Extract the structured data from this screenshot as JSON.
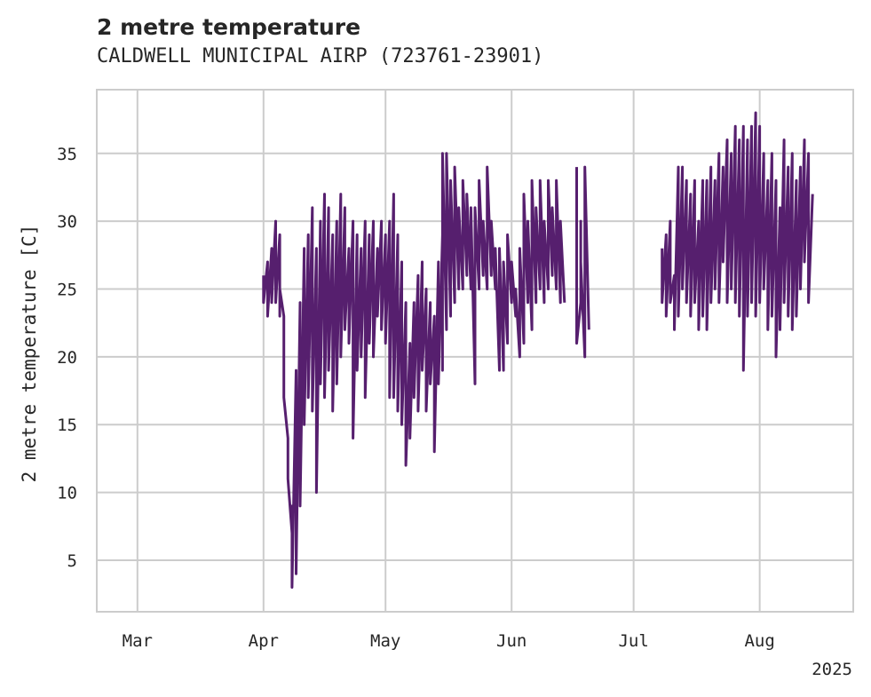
{
  "title": "2 metre temperature",
  "subtitle": "CALDWELL MUNICIPAL AIRP (723761-23901)",
  "colors": {
    "series": "#561f6e",
    "grid": "#cccccc",
    "frame": "#cccccc",
    "text": "#262626"
  },
  "chart_data": {
    "type": "line",
    "title": "2 metre temperature",
    "subtitle": "CALDWELL MUNICIPAL AIRP (723761-23901)",
    "xlabel": "",
    "ylabel": "2 metre temperature [C]",
    "year_label": "2025",
    "xlim": [
      "2025-02-19",
      "2025-08-24"
    ],
    "ylim": [
      1.2,
      39.7
    ],
    "grid": true,
    "x_ticks": [
      {
        "date": "2025-03-01",
        "label": "Mar"
      },
      {
        "date": "2025-04-01",
        "label": "Apr"
      },
      {
        "date": "2025-05-01",
        "label": "May"
      },
      {
        "date": "2025-06-01",
        "label": "Jun"
      },
      {
        "date": "2025-07-01",
        "label": "Jul"
      },
      {
        "date": "2025-08-01",
        "label": "Aug"
      }
    ],
    "y_ticks": [
      5,
      10,
      15,
      20,
      25,
      30,
      35
    ],
    "series": [
      {
        "color": "#561f6e",
        "segments": [
          [
            [
              "2025-04-01",
              26
            ],
            [
              "2025-04-01",
              24
            ],
            [
              "2025-04-02",
              27
            ],
            [
              "2025-04-02",
              23
            ],
            [
              "2025-04-03",
              28
            ],
            [
              "2025-04-03",
              24
            ],
            [
              "2025-04-04",
              30
            ],
            [
              "2025-04-04",
              24
            ],
            [
              "2025-04-05",
              29
            ],
            [
              "2025-04-05",
              23
            ],
            [
              "2025-04-05",
              25
            ],
            [
              "2025-04-06",
              23
            ],
            [
              "2025-04-06",
              17
            ],
            [
              "2025-04-07",
              14
            ],
            [
              "2025-04-07",
              11
            ],
            [
              "2025-04-08",
              7
            ],
            [
              "2025-04-08",
              9
            ],
            [
              "2025-04-08",
              3
            ],
            [
              "2025-04-09",
              19
            ],
            [
              "2025-04-09",
              4
            ],
            [
              "2025-04-10",
              24
            ],
            [
              "2025-04-10",
              9
            ],
            [
              "2025-04-11",
              28
            ],
            [
              "2025-04-11",
              15
            ],
            [
              "2025-04-12",
              29
            ],
            [
              "2025-04-12",
              17
            ],
            [
              "2025-04-13",
              31
            ],
            [
              "2025-04-13",
              16
            ],
            [
              "2025-04-14",
              28
            ],
            [
              "2025-04-14",
              10
            ],
            [
              "2025-04-15",
              30
            ],
            [
              "2025-04-15",
              18
            ],
            [
              "2025-04-16",
              32
            ],
            [
              "2025-04-16",
              17
            ],
            [
              "2025-04-17",
              31
            ],
            [
              "2025-04-17",
              19
            ],
            [
              "2025-04-18",
              29
            ],
            [
              "2025-04-18",
              16
            ],
            [
              "2025-04-19",
              30
            ],
            [
              "2025-04-19",
              18
            ],
            [
              "2025-04-20",
              32
            ],
            [
              "2025-04-20",
              20
            ],
            [
              "2025-04-21",
              31
            ],
            [
              "2025-04-21",
              22
            ],
            [
              "2025-04-22",
              28
            ],
            [
              "2025-04-22",
              21
            ],
            [
              "2025-04-23",
              30
            ],
            [
              "2025-04-23",
              14
            ],
            [
              "2025-04-24",
              29
            ],
            [
              "2025-04-24",
              19
            ],
            [
              "2025-04-25",
              28
            ],
            [
              "2025-04-25",
              20
            ],
            [
              "2025-04-26",
              30
            ],
            [
              "2025-04-26",
              17
            ],
            [
              "2025-04-27",
              29
            ],
            [
              "2025-04-27",
              21
            ],
            [
              "2025-04-28",
              30
            ],
            [
              "2025-04-28",
              20
            ],
            [
              "2025-04-29",
              28
            ],
            [
              "2025-04-29",
              23
            ],
            [
              "2025-04-30",
              30
            ],
            [
              "2025-04-30",
              22
            ],
            [
              "2025-05-01",
              29
            ],
            [
              "2025-05-01",
              21
            ],
            [
              "2025-05-02",
              30
            ],
            [
              "2025-05-02",
              17
            ],
            [
              "2025-05-03",
              32
            ],
            [
              "2025-05-03",
              17
            ],
            [
              "2025-05-04",
              29
            ],
            [
              "2025-05-04",
              16
            ],
            [
              "2025-05-05",
              27
            ],
            [
              "2025-05-05",
              15
            ],
            [
              "2025-05-06",
              24
            ],
            [
              "2025-05-06",
              12
            ],
            [
              "2025-05-07",
              21
            ],
            [
              "2025-05-07",
              14
            ],
            [
              "2025-05-08",
              24
            ],
            [
              "2025-05-08",
              17
            ],
            [
              "2025-05-09",
              26
            ],
            [
              "2025-05-09",
              16
            ],
            [
              "2025-05-10",
              27
            ],
            [
              "2025-05-10",
              19
            ],
            [
              "2025-05-11",
              25
            ],
            [
              "2025-05-11",
              16
            ],
            [
              "2025-05-12",
              24
            ],
            [
              "2025-05-12",
              18
            ],
            [
              "2025-05-13",
              23
            ],
            [
              "2025-05-13",
              13
            ],
            [
              "2025-05-14",
              27
            ],
            [
              "2025-05-14",
              18
            ],
            [
              "2025-05-15",
              29
            ],
            [
              "2025-05-15",
              19
            ],
            [
              "2025-05-15",
              35
            ],
            [
              "2025-05-16",
              22
            ],
            [
              "2025-05-16",
              35
            ],
            [
              "2025-05-17",
              23
            ],
            [
              "2025-05-17",
              33
            ],
            [
              "2025-05-18",
              24
            ],
            [
              "2025-05-18",
              34
            ],
            [
              "2025-05-19",
              25
            ],
            [
              "2025-05-19",
              31
            ],
            [
              "2025-05-20",
              25
            ],
            [
              "2025-05-20",
              33
            ],
            [
              "2025-05-21",
              26
            ],
            [
              "2025-05-21",
              32
            ],
            [
              "2025-05-22",
              25
            ],
            [
              "2025-05-22",
              31
            ],
            [
              "2025-05-23",
              18
            ],
            [
              "2025-05-23",
              31
            ],
            [
              "2025-05-24",
              25
            ],
            [
              "2025-05-24",
              33
            ],
            [
              "2025-05-25",
              26
            ],
            [
              "2025-05-25",
              30
            ],
            [
              "2025-05-26",
              25
            ],
            [
              "2025-05-26",
              34
            ],
            [
              "2025-05-27",
              26
            ],
            [
              "2025-05-27",
              30
            ],
            [
              "2025-05-28",
              25
            ],
            [
              "2025-05-28",
              28
            ],
            [
              "2025-05-29",
              19
            ],
            [
              "2025-05-29",
              28
            ],
            [
              "2025-05-30",
              19
            ],
            [
              "2025-05-30",
              27
            ],
            [
              "2025-05-31",
              21
            ],
            [
              "2025-05-31",
              29
            ],
            [
              "2025-06-01",
              24
            ],
            [
              "2025-06-01",
              27
            ],
            [
              "2025-06-02",
              23
            ],
            [
              "2025-06-02",
              25
            ],
            [
              "2025-06-03",
              20
            ],
            [
              "2025-06-03",
              28
            ],
            [
              "2025-06-04",
              21
            ],
            [
              "2025-06-04",
              32
            ],
            [
              "2025-06-05",
              24
            ],
            [
              "2025-06-05",
              30
            ],
            [
              "2025-06-06",
              22
            ],
            [
              "2025-06-06",
              33
            ],
            [
              "2025-06-07",
              24
            ],
            [
              "2025-06-07",
              31
            ],
            [
              "2025-06-08",
              25
            ],
            [
              "2025-06-08",
              33
            ],
            [
              "2025-06-09",
              24
            ],
            [
              "2025-06-09",
              30
            ],
            [
              "2025-06-10",
              25
            ],
            [
              "2025-06-10",
              33
            ],
            [
              "2025-06-11",
              26
            ],
            [
              "2025-06-11",
              31
            ],
            [
              "2025-06-12",
              25
            ],
            [
              "2025-06-12",
              33
            ],
            [
              "2025-06-13",
              24
            ],
            [
              "2025-06-13",
              30
            ],
            [
              "2025-06-14",
              24
            ]
          ],
          [
            [
              "2025-06-17",
              34
            ],
            [
              "2025-06-17",
              30
            ],
            [
              "2025-06-17",
              21
            ],
            [
              "2025-06-18",
              24
            ],
            [
              "2025-06-18",
              30
            ],
            [
              "2025-06-18",
              27
            ],
            [
              "2025-06-19",
              20
            ],
            [
              "2025-06-19",
              34
            ],
            [
              "2025-06-20",
              22
            ]
          ],
          [
            [
              "2025-07-08",
              28
            ],
            [
              "2025-07-08",
              24
            ],
            [
              "2025-07-09",
              29
            ],
            [
              "2025-07-09",
              23
            ],
            [
              "2025-07-10",
              30
            ],
            [
              "2025-07-10",
              24
            ],
            [
              "2025-07-11",
              26
            ],
            [
              "2025-07-11",
              22
            ],
            [
              "2025-07-12",
              34
            ],
            [
              "2025-07-12",
              23
            ],
            [
              "2025-07-13",
              34
            ],
            [
              "2025-07-13",
              25
            ],
            [
              "2025-07-14",
              33
            ],
            [
              "2025-07-14",
              24
            ],
            [
              "2025-07-15",
              32
            ],
            [
              "2025-07-15",
              23
            ],
            [
              "2025-07-16",
              33
            ],
            [
              "2025-07-16",
              24
            ],
            [
              "2025-07-17",
              30
            ],
            [
              "2025-07-17",
              22
            ],
            [
              "2025-07-18",
              33
            ],
            [
              "2025-07-18",
              23
            ],
            [
              "2025-07-19",
              33
            ],
            [
              "2025-07-19",
              22
            ],
            [
              "2025-07-20",
              34
            ],
            [
              "2025-07-20",
              24
            ],
            [
              "2025-07-21",
              33
            ],
            [
              "2025-07-21",
              25
            ],
            [
              "2025-07-22",
              35
            ],
            [
              "2025-07-22",
              24
            ],
            [
              "2025-07-23",
              34
            ],
            [
              "2025-07-23",
              27
            ],
            [
              "2025-07-24",
              36
            ],
            [
              "2025-07-24",
              24
            ],
            [
              "2025-07-25",
              35
            ],
            [
              "2025-07-25",
              25
            ],
            [
              "2025-07-26",
              37
            ],
            [
              "2025-07-26",
              24
            ],
            [
              "2025-07-27",
              36
            ],
            [
              "2025-07-27",
              23
            ],
            [
              "2025-07-28",
              37
            ],
            [
              "2025-07-28",
              19
            ],
            [
              "2025-07-29",
              36
            ],
            [
              "2025-07-29",
              23
            ],
            [
              "2025-07-30",
              37
            ],
            [
              "2025-07-30",
              24
            ],
            [
              "2025-07-31",
              38
            ],
            [
              "2025-07-31",
              23
            ],
            [
              "2025-08-01",
              37
            ],
            [
              "2025-08-01",
              24
            ],
            [
              "2025-08-02",
              35
            ],
            [
              "2025-08-02",
              25
            ],
            [
              "2025-08-03",
              33
            ],
            [
              "2025-08-03",
              22
            ],
            [
              "2025-08-04",
              35
            ],
            [
              "2025-08-04",
              23
            ],
            [
              "2025-08-05",
              33
            ],
            [
              "2025-08-05",
              20
            ],
            [
              "2025-08-06",
              31
            ],
            [
              "2025-08-06",
              22
            ],
            [
              "2025-08-07",
              36
            ],
            [
              "2025-08-07",
              24
            ],
            [
              "2025-08-08",
              34
            ],
            [
              "2025-08-08",
              23
            ],
            [
              "2025-08-09",
              35
            ],
            [
              "2025-08-09",
              22
            ],
            [
              "2025-08-10",
              33
            ],
            [
              "2025-08-10",
              23
            ],
            [
              "2025-08-11",
              34
            ],
            [
              "2025-08-11",
              25
            ],
            [
              "2025-08-12",
              36
            ],
            [
              "2025-08-12",
              27
            ],
            [
              "2025-08-13",
              35
            ],
            [
              "2025-08-13",
              24
            ],
            [
              "2025-08-14",
              32
            ]
          ]
        ]
      }
    ]
  }
}
